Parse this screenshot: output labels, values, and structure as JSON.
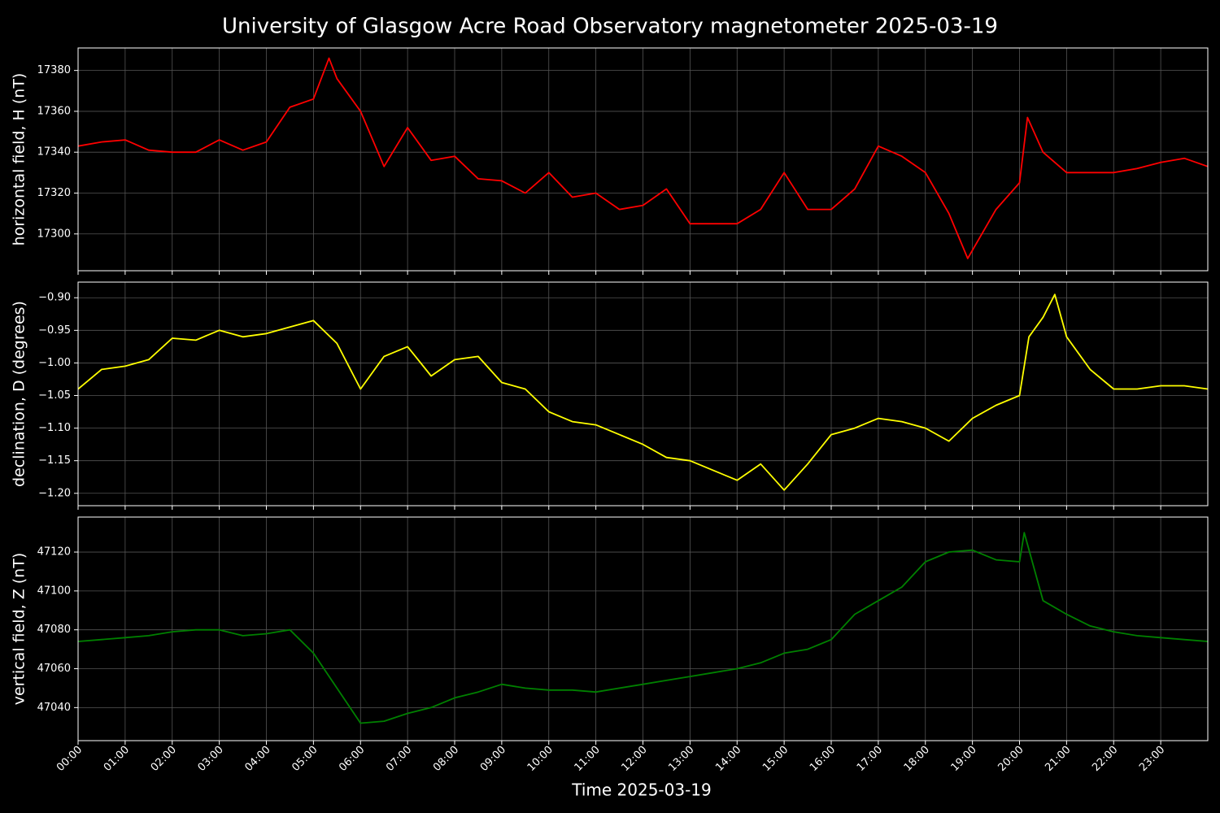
{
  "chart_data": [
    {
      "type": "line",
      "title": "University of Glasgow Acre Road Observatory magnetometer 2025-03-19",
      "y_label": "horizontal field, H (nT)",
      "color": "#ff0000",
      "x": [
        0,
        0.5,
        1,
        1.5,
        2,
        2.5,
        3,
        3.5,
        4,
        4.5,
        5,
        5.33,
        5.5,
        6,
        6.5,
        7,
        7.5,
        8,
        8.5,
        9,
        9.5,
        10,
        10.5,
        11,
        11.5,
        12,
        12.5,
        13,
        13.5,
        14,
        14.5,
        15,
        15.5,
        16,
        16.5,
        17,
        17.5,
        18,
        18.5,
        18.9,
        19.5,
        20,
        20.17,
        20.5,
        21,
        21.5,
        22,
        22.5,
        23,
        23.5,
        24
      ],
      "values": [
        17343,
        17345,
        17346,
        17341,
        17340,
        17340,
        17346,
        17341,
        17345,
        17362,
        17366,
        17386,
        17376,
        17360,
        17333,
        17352,
        17336,
        17338,
        17327,
        17326,
        17320,
        17330,
        17318,
        17320,
        17312,
        17314,
        17322,
        17305,
        17305,
        17305,
        17312,
        17330,
        17312,
        17312,
        17322,
        17343,
        17338,
        17330,
        17310,
        17288,
        17312,
        17325,
        17357,
        17340,
        17330,
        17330,
        17330,
        17332,
        17335,
        17337,
        17333
      ],
      "xlim": [
        0,
        24
      ],
      "ylim": [
        17282,
        17391
      ],
      "yticks": [
        17300,
        17320,
        17340,
        17360,
        17380
      ],
      "grid": true
    },
    {
      "type": "line",
      "y_label": "declination, D (degrees)",
      "color": "#ffff00",
      "x": [
        0,
        0.5,
        1,
        1.5,
        2,
        2.5,
        3,
        3.5,
        4,
        4.5,
        5,
        5.5,
        6,
        6.5,
        7,
        7.5,
        8,
        8.5,
        9,
        9.5,
        10,
        10.5,
        11,
        11.5,
        12,
        12.5,
        13,
        13.5,
        14,
        14.5,
        15,
        15.5,
        16,
        16.5,
        17,
        17.5,
        18,
        18.5,
        19,
        19.5,
        20,
        20.2,
        20.5,
        20.75,
        21,
        21.5,
        22,
        22.5,
        23,
        23.5,
        24
      ],
      "values": [
        -1.04,
        -1.01,
        -1.005,
        -0.995,
        -0.962,
        -0.965,
        -0.95,
        -0.96,
        -0.955,
        -0.945,
        -0.935,
        -0.97,
        -1.04,
        -0.99,
        -0.975,
        -1.02,
        -0.995,
        -0.99,
        -1.03,
        -1.04,
        -1.075,
        -1.09,
        -1.095,
        -1.11,
        -1.125,
        -1.145,
        -1.15,
        -1.165,
        -1.18,
        -1.155,
        -1.195,
        -1.155,
        -1.11,
        -1.1,
        -1.085,
        -1.09,
        -1.1,
        -1.12,
        -1.085,
        -1.065,
        -1.05,
        -0.96,
        -0.93,
        -0.895,
        -0.96,
        -1.01,
        -1.04,
        -1.04,
        -1.035,
        -1.035,
        -1.04
      ],
      "xlim": [
        0,
        24
      ],
      "ylim": [
        -1.219,
        -0.876
      ],
      "yticks": [
        {
          "value": -1.2,
          "label": "−1.20"
        },
        {
          "value": -1.15,
          "label": "−1.15"
        },
        {
          "value": -1.1,
          "label": "−1.10"
        },
        {
          "value": -1.05,
          "label": "−1.05"
        },
        {
          "value": -1.0,
          "label": "−1.00"
        },
        {
          "value": -0.95,
          "label": "−0.95"
        },
        {
          "value": -0.9,
          "label": "−0.90"
        }
      ],
      "grid": true
    },
    {
      "type": "line",
      "y_label": "vertical field, Z (nT)",
      "x_label": "Time 2025-03-19",
      "color": "#008000",
      "x": [
        0,
        0.5,
        1,
        1.5,
        2,
        2.5,
        3,
        3.5,
        4,
        4.5,
        5,
        5.5,
        6,
        6.5,
        7,
        7.5,
        8,
        8.5,
        9,
        9.5,
        10,
        10.5,
        11,
        11.5,
        12,
        12.5,
        13,
        13.5,
        14,
        14.5,
        15,
        15.5,
        16,
        16.5,
        17,
        17.5,
        18,
        18.5,
        19,
        19.5,
        20,
        20.1,
        20.5,
        21,
        21.5,
        22,
        22.5,
        23,
        23.5,
        24
      ],
      "values": [
        47074,
        47075,
        47076,
        47077,
        47079,
        47080,
        47080,
        47077,
        47078,
        47080,
        47068,
        47050,
        47032,
        47033,
        47037,
        47040,
        47045,
        47048,
        47052,
        47050,
        47049,
        47049,
        47048,
        47050,
        47052,
        47054,
        47056,
        47058,
        47060,
        47063,
        47068,
        47070,
        47075,
        47088,
        47095,
        47102,
        47115,
        47120,
        47121,
        47116,
        47115,
        47130,
        47095,
        47088,
        47082,
        47079,
        47077,
        47076,
        47075,
        47074
      ],
      "xlim": [
        0,
        24
      ],
      "ylim": [
        47023,
        47138
      ],
      "yticks": [
        47040,
        47060,
        47080,
        47100,
        47120
      ],
      "xticks": [
        {
          "value": 0,
          "label": "00:00"
        },
        {
          "value": 1,
          "label": "01:00"
        },
        {
          "value": 2,
          "label": "02:00"
        },
        {
          "value": 3,
          "label": "03:00"
        },
        {
          "value": 4,
          "label": "04:00"
        },
        {
          "value": 5,
          "label": "05:00"
        },
        {
          "value": 6,
          "label": "06:00"
        },
        {
          "value": 7,
          "label": "07:00"
        },
        {
          "value": 8,
          "label": "08:00"
        },
        {
          "value": 9,
          "label": "09:00"
        },
        {
          "value": 10,
          "label": "10:00"
        },
        {
          "value": 11,
          "label": "11:00"
        },
        {
          "value": 12,
          "label": "12:00"
        },
        {
          "value": 13,
          "label": "13:00"
        },
        {
          "value": 14,
          "label": "14:00"
        },
        {
          "value": 15,
          "label": "15:00"
        },
        {
          "value": 16,
          "label": "16:00"
        },
        {
          "value": 17,
          "label": "17:00"
        },
        {
          "value": 18,
          "label": "18:00"
        },
        {
          "value": 19,
          "label": "19:00"
        },
        {
          "value": 20,
          "label": "20:00"
        },
        {
          "value": 21,
          "label": "21:00"
        },
        {
          "value": 22,
          "label": "22:00"
        },
        {
          "value": 23,
          "label": "23:00"
        }
      ],
      "grid": true
    }
  ]
}
